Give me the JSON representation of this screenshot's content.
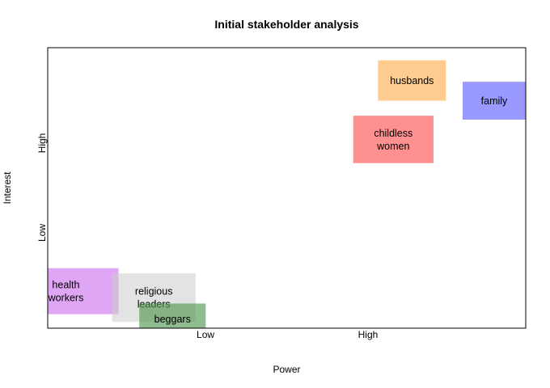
{
  "chart_data": {
    "type": "scatter",
    "title": "Initial stakeholder analysis",
    "xlabel": "Power",
    "ylabel": "Interest",
    "xlim": [
      0,
      100
    ],
    "ylim": [
      0,
      100
    ],
    "x_ticks": [
      {
        "value": 33,
        "label": "Low"
      },
      {
        "value": 67,
        "label": "High"
      }
    ],
    "y_ticks": [
      {
        "value": 34,
        "label": "Low"
      },
      {
        "value": 66,
        "label": "High"
      }
    ],
    "grid": false,
    "legend": "none",
    "stakeholders": [
      {
        "label": "health\nworkers",
        "x": 3.8,
        "y": 13.2,
        "width": 22.0,
        "height": 16.4,
        "color": "#cc77ee",
        "opacity": 0.65
      },
      {
        "label": "religious\nleaders",
        "x": 22.2,
        "y": 10.9,
        "width": 17.5,
        "height": 17.3,
        "color": "#cccccc",
        "opacity": 0.55
      },
      {
        "label": "beggars",
        "x": 26.1,
        "y": 3.3,
        "width": 13.9,
        "height": 11.0,
        "color": "#559955",
        "opacity": 0.65
      },
      {
        "label": "childless\nwomen",
        "x": 72.3,
        "y": 67.3,
        "width": 16.8,
        "height": 16.9,
        "color": "#ff5555",
        "opacity": 0.65
      },
      {
        "label": "husbands",
        "x": 76.2,
        "y": 88.3,
        "width": 14.2,
        "height": 14.4,
        "color": "#ffaa44",
        "opacity": 0.6
      },
      {
        "label": "family",
        "x": 93.4,
        "y": 81.1,
        "width": 13.2,
        "height": 13.5,
        "color": "#5555ff",
        "opacity": 0.6
      }
    ]
  }
}
